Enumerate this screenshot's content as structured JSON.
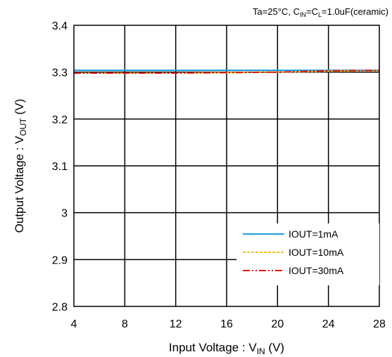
{
  "chart_data": {
    "type": "line",
    "title": "",
    "condition_parts": {
      "prefix": "Ta=25",
      "deg": "°C",
      "sep": ", C",
      "cin_sub": "IN",
      "eq": "=C",
      "cl_sub": "L",
      "suffix": "=1.0uF(ceramic)"
    },
    "xlabel_parts": {
      "main": "Input Voltage : V",
      "sub": "IN",
      "unit": " (V)"
    },
    "ylabel_parts": {
      "main": "Output Voltage : V",
      "sub": "OUT",
      "unit": " (V)"
    },
    "xlim": [
      4,
      28
    ],
    "ylim": [
      2.8,
      3.4
    ],
    "xticks": [
      4,
      8,
      12,
      16,
      20,
      24,
      28
    ],
    "xtick_labels": [
      "4",
      "8",
      "12",
      "16",
      "20",
      "24",
      "28"
    ],
    "yticks": [
      2.8,
      2.9,
      3.0,
      3.1,
      3.2,
      3.3,
      3.4
    ],
    "ytick_labels": [
      "2.8",
      "2.9",
      "3",
      "3.1",
      "3.2",
      "3.3",
      "3.4"
    ],
    "grid": true,
    "legend_position": "bottom-right",
    "series": [
      {
        "name": "IOUT=1mA",
        "color": "#1a9fdc",
        "dash": "solid",
        "x": [
          4,
          8,
          12,
          16,
          20,
          24,
          28
        ],
        "y": [
          3.304,
          3.304,
          3.304,
          3.304,
          3.304,
          3.304,
          3.304
        ]
      },
      {
        "name": "IOUT=10mA",
        "color": "#f2c21b",
        "dash": "dashed",
        "x": [
          4,
          8,
          12,
          16,
          20,
          24,
          28
        ],
        "y": [
          3.298,
          3.298,
          3.298,
          3.299,
          3.3,
          3.302,
          3.303
        ]
      },
      {
        "name": "IOUT=30mA",
        "color": "#e8140c",
        "dash": "dashdotdot",
        "x": [
          4,
          8,
          12,
          16,
          20,
          24,
          28
        ],
        "y": [
          3.298,
          3.298,
          3.298,
          3.299,
          3.3,
          3.303,
          3.304
        ]
      }
    ]
  }
}
